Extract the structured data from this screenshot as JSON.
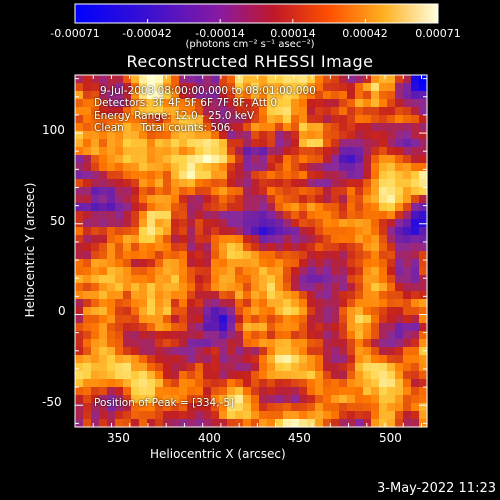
{
  "title": "Reconstructed RHESSI Image",
  "annotations": {
    "time_range": "9-Jul-2003 08:00:00.000 to 08:01:00.000",
    "detectors": "Detectors: 3F 4F 5F 6F 7F 8F, Att 0",
    "energy": "Energy Range: 12.0 - 25.0 keV",
    "clean": "Clean     Total counts: 506.",
    "peak": "Position of Peak = [334,-5]"
  },
  "timestamp": "3-May-2022 11:23",
  "colorbar": {
    "ticks": [
      "-0.00071",
      "-0.00042",
      "-0.00014",
      "0.00014",
      "0.00042",
      "0.00071"
    ],
    "unit_label": "(photons cm⁻² s⁻¹ asec⁻²)",
    "range": [
      -0.00071,
      0.00071
    ]
  },
  "chart_data": {
    "type": "heatmap",
    "title": "Reconstructed RHESSI Image",
    "xlabel": "Heliocentric X (arcsec)",
    "ylabel": "Heliocentric Y (arcsec)",
    "xlim": [
      325,
      518
    ],
    "ylim": [
      -62,
      132
    ],
    "xticks": [
      350,
      400,
      450,
      500
    ],
    "yticks": [
      -50,
      0,
      50,
      100
    ],
    "colormap": [
      "#0000ff",
      "#5a1ab4",
      "#8a2a9a",
      "#c4201e",
      "#ff7a00",
      "#ffd040",
      "#ffffd0"
    ],
    "grid": false
  }
}
